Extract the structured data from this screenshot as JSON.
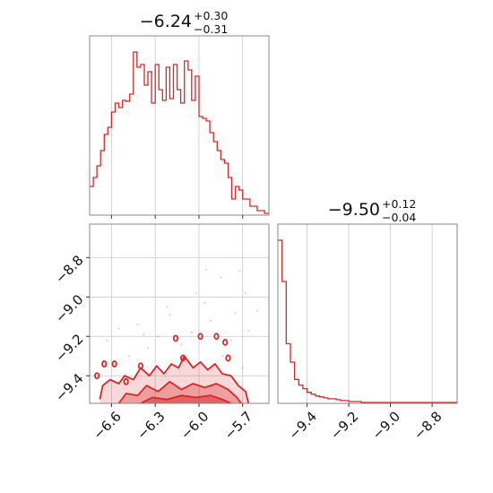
{
  "colors": {
    "accent": "#d62728",
    "grid": "#c8c8c8",
    "frame": "#888888"
  },
  "chart_data": [
    {
      "type": "histogram",
      "panel": "top-left",
      "title": {
        "main": "−6.24",
        "sup": "+0.30",
        "sub": "−0.31"
      },
      "xlim": [
        -6.75,
        -5.52
      ],
      "grid": true,
      "bin_edges": [
        -6.75,
        -6.725,
        -6.7,
        -6.675,
        -6.65,
        -6.625,
        -6.6,
        -6.575,
        -6.55,
        -6.525,
        -6.5,
        -6.475,
        -6.45,
        -6.425,
        -6.4,
        -6.375,
        -6.35,
        -6.325,
        -6.3,
        -6.275,
        -6.25,
        -6.225,
        -6.2,
        -6.175,
        -6.15,
        -6.125,
        -6.1,
        -6.075,
        -6.05,
        -6.025,
        -6.0,
        -5.975,
        -5.95,
        -5.925,
        -5.9,
        -5.875,
        -5.85,
        -5.825,
        -5.8,
        -5.775,
        -5.75,
        -5.725,
        -5.7,
        -5.675,
        -5.65,
        -5.625,
        -5.6,
        -5.575,
        -5.55,
        -5.52
      ],
      "counts": [
        32,
        42,
        55,
        72,
        90,
        98,
        115,
        125,
        120,
        128,
        127,
        135,
        182,
        165,
        168,
        145,
        160,
        125,
        168,
        140,
        128,
        165,
        130,
        168,
        140,
        125,
        172,
        162,
        128,
        155,
        110,
        108,
        105,
        92,
        82,
        72,
        62,
        58,
        42,
        18,
        32,
        28,
        18,
        18,
        10,
        10,
        5,
        5,
        2
      ],
      "xticks": [
        -6.6,
        -6.3,
        -6.0,
        -5.7
      ]
    },
    {
      "type": "histogram",
      "panel": "bottom-right",
      "title": {
        "main": "−9.50",
        "sup": "+0.12",
        "sub": "−0.04"
      },
      "xlim": [
        -9.54,
        -8.68
      ],
      "grid": true,
      "bin_edges": [
        -9.54,
        -9.52,
        -9.5,
        -9.48,
        -9.46,
        -9.44,
        -9.42,
        -9.4,
        -9.38,
        -9.36,
        -9.34,
        -9.32,
        -9.3,
        -9.28,
        -9.26,
        -9.24,
        -9.22,
        -9.2,
        -9.18,
        -9.16,
        -9.14,
        -9.12,
        -9.1,
        -9.08,
        -9.06,
        -9.04,
        -9.02,
        -9.0,
        -8.98,
        -8.96,
        -8.94,
        -8.92,
        -8.9,
        -8.88,
        -8.86,
        -8.84,
        -8.82,
        -8.8,
        -8.78,
        -8.76,
        -8.74,
        -8.72,
        -8.7,
        -8.68
      ],
      "counts": [
        178,
        133,
        65,
        45,
        26,
        20,
        16,
        12,
        10,
        8,
        7,
        6,
        5,
        5,
        4,
        3,
        3,
        2,
        2,
        2,
        1,
        1,
        1,
        1,
        1,
        1,
        1,
        1,
        1,
        1,
        1,
        1,
        1,
        1,
        1,
        1,
        1,
        1,
        1,
        1,
        1,
        1,
        1
      ],
      "xticks": [
        -9.4,
        -9.2,
        -9.0,
        -8.8
      ]
    },
    {
      "type": "contour",
      "panel": "bottom-left",
      "xlim": [
        -6.75,
        -5.52
      ],
      "ylim": [
        -9.54,
        -8.63
      ],
      "grid": true,
      "xticks": [
        -6.6,
        -6.3,
        -6.0,
        -5.7
      ],
      "yticks": [
        -8.8,
        -9.0,
        -9.2,
        -9.4
      ],
      "scatter_points": [
        [
          -6.42,
          -9.14
        ],
        [
          -6.2,
          -9.09
        ],
        [
          -5.96,
          -9.03
        ],
        [
          -5.75,
          -9.08
        ],
        [
          -5.68,
          -8.98
        ],
        [
          -5.85,
          -8.9
        ],
        [
          -6.05,
          -9.18
        ],
        [
          -6.28,
          -9.2
        ],
        [
          -6.55,
          -9.16
        ],
        [
          -5.92,
          -9.12
        ],
        [
          -5.6,
          -9.07
        ],
        [
          -5.78,
          -9.22
        ],
        [
          -6.12,
          -9.24
        ],
        [
          -6.35,
          -9.26
        ],
        [
          -6.63,
          -9.22
        ],
        [
          -6.48,
          -9.3
        ],
        [
          -5.72,
          -8.87
        ],
        [
          -5.84,
          -9.3
        ],
        [
          -6.02,
          -8.98
        ],
        [
          -6.22,
          -9.05
        ],
        [
          -5.66,
          -9.17
        ],
        [
          -5.95,
          -8.86
        ],
        [
          -6.58,
          -9.34
        ],
        [
          -5.7,
          -9.36
        ],
        [
          -6.38,
          -9.19
        ]
      ],
      "markers": [
        [
          -6.7,
          -9.4
        ],
        [
          -6.65,
          -9.34
        ],
        [
          -6.58,
          -9.34
        ],
        [
          -6.4,
          -9.35
        ],
        [
          -6.16,
          -9.21
        ],
        [
          -6.11,
          -9.31
        ],
        [
          -5.99,
          -9.2
        ],
        [
          -5.88,
          -9.2
        ],
        [
          -5.82,
          -9.23
        ],
        [
          -5.8,
          -9.31
        ],
        [
          -6.5,
          -9.43
        ]
      ],
      "contour_levels": [
        {
          "name": "outer",
          "points": [
            [
              -6.68,
              -9.52
            ],
            [
              -6.66,
              -9.45
            ],
            [
              -6.61,
              -9.42
            ],
            [
              -6.55,
              -9.44
            ],
            [
              -6.51,
              -9.4
            ],
            [
              -6.45,
              -9.42
            ],
            [
              -6.4,
              -9.36
            ],
            [
              -6.34,
              -9.4
            ],
            [
              -6.29,
              -9.35
            ],
            [
              -6.24,
              -9.39
            ],
            [
              -6.19,
              -9.34
            ],
            [
              -6.14,
              -9.36
            ],
            [
              -6.1,
              -9.3
            ],
            [
              -6.04,
              -9.36
            ],
            [
              -5.99,
              -9.33
            ],
            [
              -5.94,
              -9.37
            ],
            [
              -5.89,
              -9.34
            ],
            [
              -5.84,
              -9.39
            ],
            [
              -5.78,
              -9.4
            ],
            [
              -5.73,
              -9.45
            ],
            [
              -5.68,
              -9.48
            ],
            [
              -5.66,
              -9.54
            ]
          ]
        },
        {
          "name": "middle",
          "points": [
            [
              -6.55,
              -9.54
            ],
            [
              -6.5,
              -9.49
            ],
            [
              -6.42,
              -9.5
            ],
            [
              -6.36,
              -9.45
            ],
            [
              -6.28,
              -9.48
            ],
            [
              -6.2,
              -9.43
            ],
            [
              -6.12,
              -9.47
            ],
            [
              -6.04,
              -9.44
            ],
            [
              -5.96,
              -9.46
            ],
            [
              -5.88,
              -9.44
            ],
            [
              -5.8,
              -9.47
            ],
            [
              -5.74,
              -9.51
            ],
            [
              -5.71,
              -9.54
            ]
          ]
        },
        {
          "name": "inner",
          "points": [
            [
              -6.4,
              -9.54
            ],
            [
              -6.32,
              -9.51
            ],
            [
              -6.22,
              -9.52
            ],
            [
              -6.12,
              -9.5
            ],
            [
              -6.02,
              -9.51
            ],
            [
              -5.92,
              -9.5
            ],
            [
              -5.84,
              -9.52
            ],
            [
              -5.78,
              -9.54
            ]
          ]
        }
      ]
    }
  ]
}
